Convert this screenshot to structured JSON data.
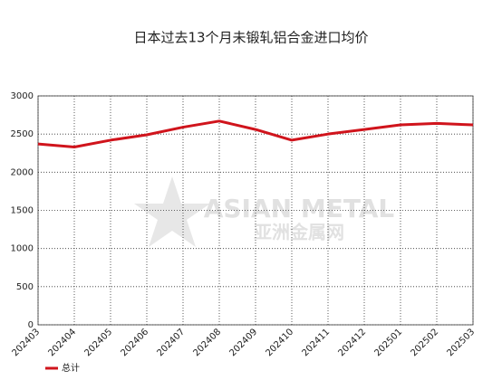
{
  "chart_data": {
    "type": "line",
    "title": "日本过去13个月未锻轧铝合金进口均价",
    "categories": [
      "202403",
      "202404",
      "202405",
      "202406",
      "202407",
      "202408",
      "202409",
      "202410",
      "202411",
      "202412",
      "202501",
      "202502",
      "202503"
    ],
    "series": [
      {
        "name": "总计",
        "color": "#d0141c",
        "values": [
          2370,
          2330,
          2420,
          2490,
          2590,
          2670,
          2560,
          2420,
          2500,
          2560,
          2620,
          2640,
          2620
        ]
      }
    ],
    "ylim": [
      0,
      3000
    ],
    "yticks": [
      0,
      500,
      1000,
      1500,
      2000,
      2500,
      3000
    ],
    "grid": true,
    "legend": "bottom-left",
    "watermark": [
      "ASIAN METAL",
      "亚洲金属网"
    ]
  }
}
